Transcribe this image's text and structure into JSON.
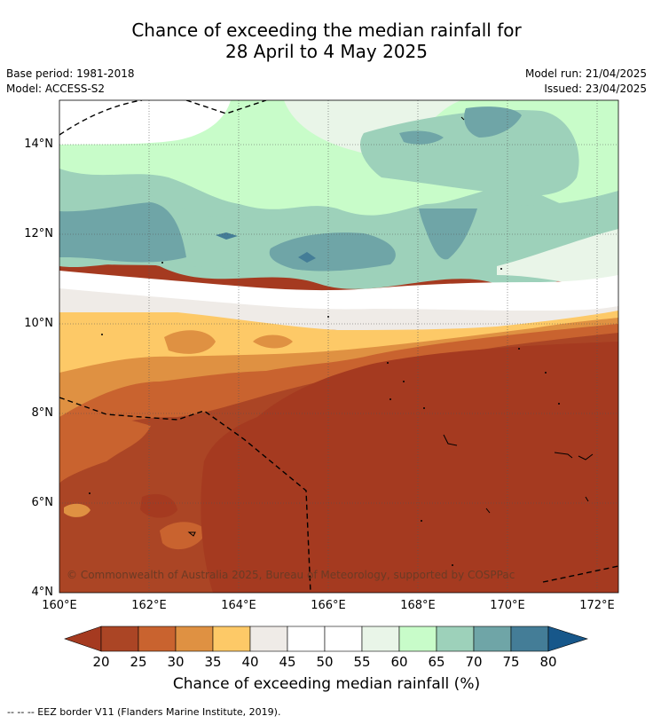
{
  "title_line1": "Chance of exceeding the median rainfall for",
  "title_line2": "28 April to 4 May 2025",
  "base_period": "Base period: 1981-2018",
  "model": "Model: ACCESS-S2",
  "model_run": "Model run: 21/04/2025",
  "issued": "Issued: 23/04/2025",
  "copyright": "© Commonwealth of Australia 2025, Bureau of Meteorology, supported by COSPPac",
  "footnote": "--  --  -- EEZ border V11 (Flanders Marine Institute, 2019).",
  "lat_ticks": [
    "14°N",
    "12°N",
    "10°N",
    "8°N",
    "6°N",
    "4°N"
  ],
  "lon_ticks": [
    "160°E",
    "162°E",
    "164°E",
    "166°E",
    "168°E",
    "170°E",
    "172°E"
  ],
  "colorbar": {
    "title": "Chance of exceeding median rainfall (%)",
    "labels": [
      "20",
      "25",
      "30",
      "35",
      "40",
      "45",
      "50",
      "55",
      "60",
      "65",
      "70",
      "75",
      "80"
    ],
    "colors": [
      "#ab4525",
      "#c9632f",
      "#df9142",
      "#fdc967",
      "#efebe7",
      "#ffffff",
      "#ffffff",
      "#e9f5e8",
      "#c8fcc9",
      "#9dd1ba",
      "#6fa5a7",
      "#447d97"
    ],
    "under_color": "#a53a20",
    "over_color": "#17578a"
  },
  "legend": {
    "bands": [
      {
        "range": "<20",
        "color": "#a53a20"
      },
      {
        "range": "20-25",
        "color": "#ab4525"
      },
      {
        "range": "25-30",
        "color": "#c9632f"
      },
      {
        "range": "30-35",
        "color": "#df9142"
      },
      {
        "range": "35-40",
        "color": "#fdc967"
      },
      {
        "range": "40-45",
        "color": "#efebe7"
      },
      {
        "range": "45-55",
        "color": "#ffffff"
      },
      {
        "range": "55-60",
        "color": "#e9f5e8"
      },
      {
        "range": "60-65",
        "color": "#c8fcc9"
      },
      {
        "range": "65-70",
        "color": "#9dd1ba"
      },
      {
        "range": "70-75",
        "color": "#6fa5a7"
      },
      {
        "range": "75-80",
        "color": "#447d97"
      }
    ]
  }
}
